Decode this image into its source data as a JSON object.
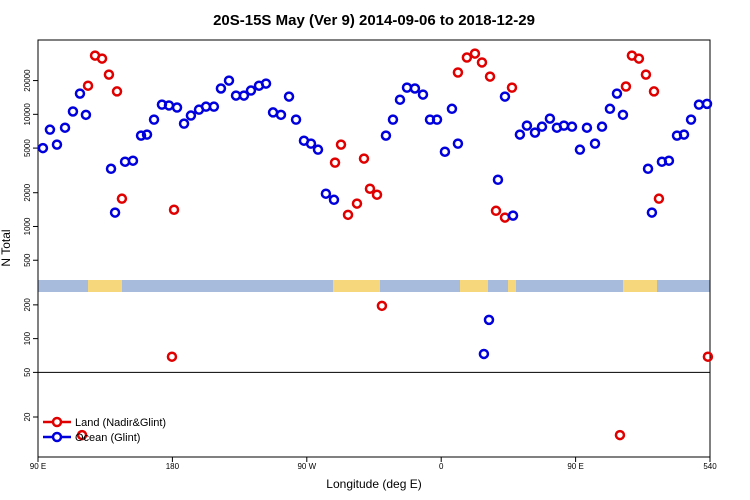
{
  "chart_data": {
    "type": "scatter",
    "title": "20S-15S May (Ver 9)   2014-09-06 to 2018-12-29",
    "x_label": "Longitude (deg E)",
    "y_label": "N Total",
    "xlim": [
      90,
      540
    ],
    "xticks": [
      {
        "value": 90,
        "label": "90 E"
      },
      180,
      {
        "value": 270,
        "label": "90 W"
      },
      {
        "value": 360,
        "label": "0"
      },
      {
        "value": 450,
        "label": "90 E"
      },
      540
    ],
    "ylim": [
      8.8,
      46000
    ],
    "y_scale": "log",
    "yticks": [
      20,
      50,
      100,
      200,
      500,
      1000,
      2000,
      5000,
      10000,
      20000
    ],
    "hline": 50,
    "legend": "lower left",
    "series": [
      {
        "name": "Land (Nadir&Glint)",
        "color": "#e00000",
        "x": [
          119.5,
          123.5,
          128.2,
          132.9,
          137.5,
          142.9,
          146.2,
          179.7,
          181.1,
          288.9,
          292.9,
          297.6,
          303.6,
          308.3,
          312.3,
          317.0,
          320.3,
          371.2,
          377.2,
          382.6,
          387.3,
          392.7,
          396.7,
          402.7,
          407.4,
          479.7,
          483.7,
          487.7,
          492.4,
          497.1,
          502.5,
          505.8,
          538.6
        ],
        "values": [
          13.8,
          18000,
          33400,
          31400,
          22600,
          16000,
          1770,
          69,
          1410,
          3710,
          5370,
          1270,
          1600,
          4030,
          2170,
          1920,
          196,
          23600,
          32100,
          34800,
          29000,
          21700,
          1380,
          1200,
          17300,
          13.8,
          17700,
          33400,
          31400,
          22600,
          16000,
          1770,
          69
        ]
      },
      {
        "name": "Ocean (Glint)",
        "color": "#0000dd",
        "x": [
          93.3,
          98.0,
          102.7,
          108.1,
          113.4,
          118.1,
          122.1,
          138.9,
          141.6,
          148.3,
          153.6,
          159.0,
          163.0,
          167.7,
          173.0,
          177.7,
          183.1,
          187.8,
          192.4,
          197.8,
          202.5,
          207.8,
          212.5,
          217.9,
          222.6,
          227.9,
          232.6,
          238.0,
          242.7,
          247.4,
          252.7,
          258.1,
          262.8,
          268.1,
          272.8,
          277.5,
          282.8,
          288.2,
          323.0,
          327.7,
          332.4,
          337.1,
          342.4,
          347.8,
          352.5,
          357.2,
          362.5,
          367.2,
          371.2,
          388.6,
          392.0,
          398.0,
          402.7,
          408.1,
          412.7,
          417.4,
          422.8,
          427.5,
          432.8,
          437.5,
          442.2,
          447.6,
          452.9,
          457.6,
          463.0,
          467.7,
          473.0,
          477.7,
          481.7,
          498.5,
          501.1,
          507.8,
          512.5,
          517.9,
          522.6,
          527.3,
          532.6,
          538.0
        ],
        "values": [
          5000,
          7300,
          5370,
          7600,
          10600,
          15300,
          9900,
          3270,
          1330,
          3780,
          3860,
          6460,
          6600,
          8970,
          12200,
          12000,
          11500,
          8260,
          9750,
          11000,
          11700,
          11700,
          17000,
          20000,
          14700,
          14700,
          16300,
          18000,
          18800,
          10400,
          9900,
          14400,
          8970,
          5820,
          5480,
          4840,
          1960,
          1730,
          6460,
          8970,
          13500,
          17300,
          17000,
          15000,
          8970,
          8970,
          4640,
          11200,
          5480,
          73,
          147,
          2610,
          14400,
          1250,
          6600,
          7930,
          6870,
          7760,
          9160,
          7600,
          7930,
          7760,
          4840,
          7600,
          5480,
          7760,
          11200,
          15300,
          9900,
          3270,
          1330,
          3780,
          3860,
          6460,
          6600,
          8970,
          12200,
          12400
        ]
      }
    ]
  }
}
